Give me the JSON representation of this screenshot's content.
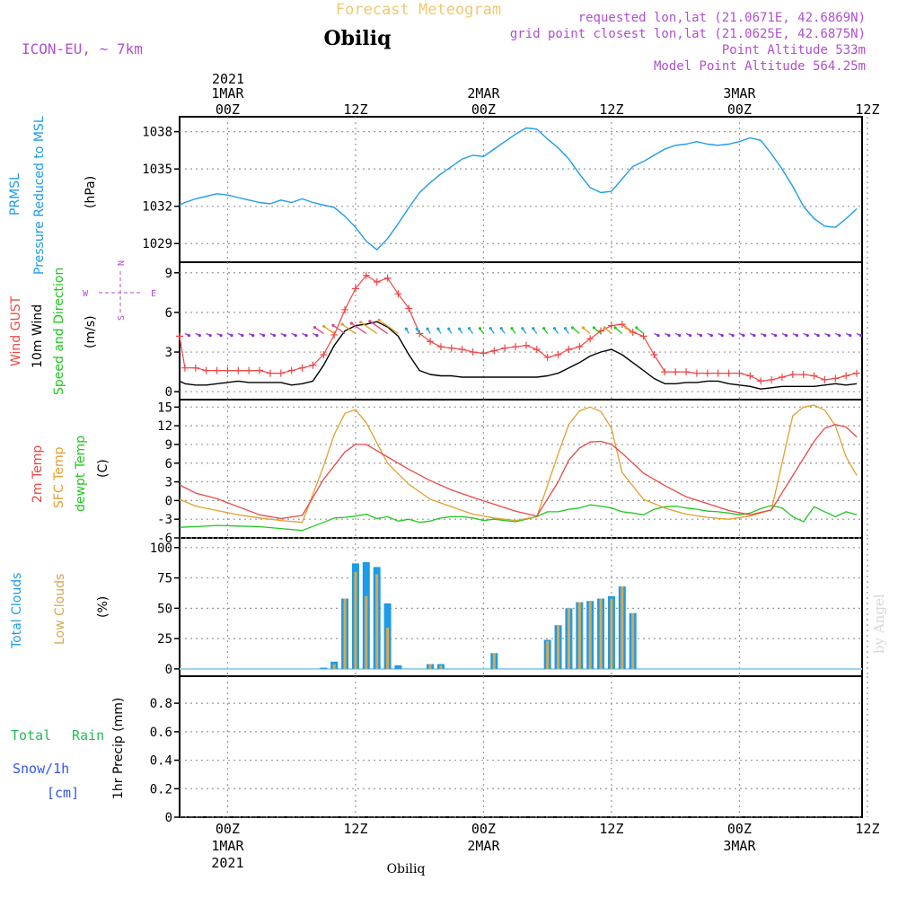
{
  "header": {
    "title": "Forecast Meteogram",
    "place": "Obiliq",
    "model": "ICON-EU, ~ 7km",
    "requested": "requested lon,lat (21.0671E, 42.6869N)",
    "grid": "grid point closest lon,lat (21.0625E, 42.6875N)",
    "altitude": "Point Altitude 533m",
    "model_altitude": "Model Point Altitude 564.25m",
    "footer_place": "Obiliq",
    "credit": "by Angel"
  },
  "time_axis": {
    "year": "2021",
    "top_labels": [
      {
        "h": 0,
        "top": "1MAR",
        "bottom": "00Z"
      },
      {
        "h": 12,
        "top": "",
        "bottom": "12Z"
      },
      {
        "h": 24,
        "top": "2MAR",
        "bottom": "00Z"
      },
      {
        "h": 36,
        "top": "",
        "bottom": "12Z"
      },
      {
        "h": 48,
        "top": "3MAR",
        "bottom": "00Z"
      },
      {
        "h": 60,
        "top": "",
        "bottom": "12Z"
      }
    ],
    "bottom_labels": [
      {
        "h": 0,
        "a": "00Z",
        "b": "1MAR",
        "c": "2021"
      },
      {
        "h": 12,
        "a": "12Z",
        "b": "",
        "c": ""
      },
      {
        "h": 24,
        "a": "00Z",
        "b": "2MAR",
        "c": ""
      },
      {
        "h": 36,
        "a": "12Z",
        "b": "",
        "c": ""
      },
      {
        "h": 48,
        "a": "00Z",
        "b": "3MAR",
        "c": ""
      },
      {
        "h": 60,
        "a": "12Z",
        "b": "",
        "c": ""
      }
    ]
  },
  "panels": {
    "pressure": {
      "l1": "PRMSL",
      "l2": "Pressure Reduced to MSL",
      "unit": "(hPa)"
    },
    "wind": {
      "l1": "Wind GUST",
      "l2": "10m Wind",
      "l3": "Speed and Direction",
      "unit": "(m/s)",
      "compass_n": "N",
      "compass_s": "S",
      "compass_w": "W",
      "compass_e": "E"
    },
    "temp": {
      "l1": "2m Temp",
      "l2": "SFC Temp",
      "l3": "dewpt Temp",
      "unit": "(C)"
    },
    "clouds": {
      "l1": "Total Clouds",
      "l2": "Low Clouds",
      "unit": "(%)"
    },
    "precip": {
      "l1": "Total",
      "l1b": "Rain",
      "l2": "Snow/1h",
      "l3": "[cm]",
      "unit": "1hr Precip (mm)"
    }
  },
  "colors": {
    "pressure": "#1e9be8",
    "gust": "#f04646",
    "wind": "#000000",
    "arrows_purple": "#8a2be2",
    "t2m": "#e84848",
    "tsfc": "#e0a030",
    "dewpt": "#20c820",
    "total_clouds": "#1e9be8",
    "low_clouds": "#d8a850",
    "label_rain": "#22bb55",
    "label_snow": "#3355ee",
    "title": "#f0c870",
    "info": "#b050d0"
  },
  "chart_data": [
    {
      "type": "line",
      "id": "pressure",
      "title": "PRMSL Pressure Reduced to MSL",
      "ylabel": "(hPa)",
      "xlim": [
        -4.5,
        59.5
      ],
      "ylim": [
        1027.5,
        1039.2
      ],
      "yticks": [
        1029,
        1032,
        1035,
        1038
      ],
      "series": [
        {
          "name": "PRMSL",
          "x": [
            -4.5,
            -4,
            -3,
            -2,
            -1,
            0,
            1,
            2,
            3,
            4,
            5,
            6,
            7,
            8,
            9,
            10,
            11,
            12,
            13,
            14,
            15,
            16,
            17,
            18,
            19,
            20,
            21,
            22,
            23,
            24,
            25,
            26,
            27,
            28,
            29,
            30,
            31,
            32,
            33,
            34,
            35,
            36,
            37,
            38,
            39,
            40,
            41,
            42,
            43,
            44,
            45,
            46,
            47,
            48,
            49,
            50,
            51,
            52,
            53,
            54,
            55,
            56,
            57,
            58,
            59
          ],
          "y": [
            1032.1,
            1032.3,
            1032.6,
            1032.8,
            1033.0,
            1032.9,
            1032.7,
            1032.5,
            1032.3,
            1032.2,
            1032.5,
            1032.3,
            1032.6,
            1032.3,
            1032.1,
            1031.9,
            1031.2,
            1030.3,
            1029.2,
            1028.5,
            1029.4,
            1030.6,
            1031.9,
            1033.1,
            1033.9,
            1034.6,
            1035.2,
            1035.8,
            1036.1,
            1036.0,
            1036.6,
            1037.2,
            1037.8,
            1038.3,
            1038.2,
            1037.4,
            1036.7,
            1035.8,
            1034.6,
            1033.5,
            1033.1,
            1033.2,
            1034.2,
            1035.2,
            1035.6,
            1036.1,
            1036.6,
            1036.9,
            1037.0,
            1037.2,
            1037.0,
            1036.9,
            1037.0,
            1037.2,
            1037.5,
            1037.3,
            1036.2,
            1035.0,
            1033.6,
            1032.0,
            1031.0,
            1030.4,
            1030.3,
            1031.0,
            1031.8
          ]
        }
      ]
    },
    {
      "type": "line",
      "id": "wind",
      "title": "Wind GUST / 10m Wind",
      "ylabel": "(m/s)",
      "xlim": [
        -4.5,
        59.5
      ],
      "ylim": [
        -0.6,
        9.8
      ],
      "yticks": [
        0,
        3,
        6,
        9
      ],
      "series": [
        {
          "name": "Wind GUST",
          "x": [
            -4.5,
            -4,
            -3,
            -2,
            -1,
            0,
            1,
            2,
            3,
            4,
            5,
            6,
            7,
            8,
            9,
            10,
            11,
            12,
            13,
            14,
            15,
            16,
            17,
            18,
            19,
            20,
            21,
            22,
            23,
            24,
            25,
            26,
            27,
            28,
            29,
            30,
            31,
            32,
            33,
            34,
            35,
            36,
            37,
            38,
            39,
            40,
            41,
            42,
            43,
            44,
            45,
            46,
            47,
            48,
            49,
            50,
            51,
            52,
            53,
            54,
            55,
            56,
            57,
            58,
            59
          ],
          "y": [
            4.2,
            1.8,
            1.8,
            1.6,
            1.6,
            1.6,
            1.6,
            1.6,
            1.6,
            1.4,
            1.4,
            1.6,
            1.8,
            2.0,
            2.8,
            4.3,
            6.2,
            7.8,
            8.8,
            8.3,
            8.6,
            7.4,
            6.3,
            4.4,
            3.8,
            3.4,
            3.3,
            3.2,
            3.0,
            2.9,
            3.1,
            3.3,
            3.4,
            3.5,
            3.2,
            2.6,
            2.8,
            3.2,
            3.4,
            4.0,
            4.6,
            5.0,
            5.1,
            4.5,
            4.2,
            2.8,
            1.5,
            1.5,
            1.5,
            1.4,
            1.4,
            1.4,
            1.4,
            1.4,
            1.2,
            0.8,
            0.9,
            1.1,
            1.3,
            1.3,
            1.2,
            0.9,
            1.0,
            1.2,
            1.4
          ]
        },
        {
          "name": "10m Wind",
          "x": [
            -4.5,
            -4,
            -3,
            -2,
            -1,
            0,
            1,
            2,
            3,
            4,
            5,
            6,
            7,
            8,
            9,
            10,
            11,
            12,
            13,
            14,
            15,
            16,
            17,
            18,
            19,
            20,
            21,
            22,
            23,
            24,
            25,
            26,
            27,
            28,
            29,
            30,
            31,
            32,
            33,
            34,
            35,
            36,
            37,
            38,
            39,
            40,
            41,
            42,
            43,
            44,
            45,
            46,
            47,
            48,
            49,
            50,
            51,
            52,
            53,
            54,
            55,
            56,
            57,
            58,
            59
          ],
          "y": [
            0.8,
            0.6,
            0.5,
            0.5,
            0.6,
            0.7,
            0.8,
            0.7,
            0.7,
            0.7,
            0.7,
            0.5,
            0.6,
            0.8,
            2.0,
            3.5,
            4.6,
            5.0,
            5.1,
            5.3,
            4.9,
            4.2,
            2.8,
            1.6,
            1.3,
            1.2,
            1.2,
            1.1,
            1.1,
            1.1,
            1.1,
            1.1,
            1.1,
            1.1,
            1.1,
            1.2,
            1.4,
            1.8,
            2.2,
            2.7,
            3.0,
            3.2,
            2.8,
            2.2,
            1.6,
            1.0,
            0.6,
            0.6,
            0.7,
            0.7,
            0.8,
            0.8,
            0.6,
            0.5,
            0.4,
            0.2,
            0.3,
            0.4,
            0.4,
            0.4,
            0.4,
            0.5,
            0.6,
            0.5,
            0.6
          ]
        }
      ]
    },
    {
      "type": "line",
      "id": "temp",
      "title": "2m Temp / SFC Temp / dewpt Temp",
      "ylabel": "(C)",
      "xlim": [
        -4.5,
        59.5
      ],
      "ylim": [
        -6,
        16.2
      ],
      "yticks": [
        -6,
        -3,
        0,
        3,
        6,
        9,
        12,
        15
      ],
      "series": [
        {
          "name": "2m Temp",
          "x": [
            -4.5,
            -3,
            -1,
            1,
            3,
            5,
            7,
            9,
            11,
            12,
            13,
            15,
            17,
            19,
            21,
            23,
            25,
            27,
            29,
            31,
            32,
            33,
            34,
            35,
            36,
            37,
            39,
            41,
            43,
            45,
            47,
            49,
            51,
            53,
            55,
            56,
            57,
            58,
            59
          ],
          "y": [
            2.5,
            1.2,
            0.3,
            -1.0,
            -2.3,
            -2.9,
            -2.4,
            3.4,
            7.8,
            9.0,
            9.0,
            7.0,
            5.0,
            3.2,
            1.7,
            0.5,
            -0.6,
            -1.7,
            -2.5,
            3.0,
            6.5,
            8.4,
            9.4,
            9.5,
            9.0,
            7.6,
            4.4,
            2.4,
            0.6,
            -0.5,
            -1.6,
            -2.3,
            -1.5,
            4.0,
            9.5,
            11.6,
            12.2,
            11.8,
            10.2
          ]
        },
        {
          "name": "SFC Temp",
          "x": [
            -4.5,
            -3,
            -1,
            1,
            3,
            5,
            7,
            9,
            10,
            11,
            12,
            13,
            15,
            17,
            19,
            21,
            23,
            25,
            27,
            29,
            31,
            32,
            33,
            34,
            35,
            36,
            37,
            39,
            41,
            43,
            45,
            47,
            49,
            51,
            53,
            54,
            55,
            56,
            57,
            58,
            59
          ],
          "y": [
            0.2,
            -0.9,
            -1.6,
            -2.3,
            -2.8,
            -3.2,
            -3.5,
            5.5,
            10.6,
            14.0,
            14.6,
            12.5,
            6.0,
            2.6,
            0.2,
            -1.0,
            -2.2,
            -2.8,
            -3.2,
            -2.6,
            7.5,
            12.2,
            14.4,
            15.0,
            14.3,
            11.6,
            4.5,
            0.2,
            -1.2,
            -2.2,
            -2.7,
            -3.0,
            -2.5,
            -1.5,
            13.6,
            15.0,
            15.3,
            14.5,
            12.0,
            7.0,
            4.0
          ]
        },
        {
          "name": "dewpt Temp",
          "x": [
            -4.5,
            -3,
            -1,
            1,
            3,
            5,
            7,
            9,
            10,
            11,
            12,
            13,
            14,
            15,
            16,
            17,
            18,
            19,
            20,
            21,
            22,
            23,
            24,
            25,
            26,
            27,
            28,
            29,
            30,
            31,
            32,
            33,
            34,
            35,
            36,
            37,
            38,
            39,
            40,
            41,
            42,
            43,
            44,
            45,
            46,
            47,
            48,
            49,
            50,
            51,
            52,
            53,
            54,
            55,
            56,
            57,
            58,
            59
          ],
          "y": [
            -4.3,
            -4.2,
            -4.0,
            -4.1,
            -4.2,
            -4.5,
            -4.8,
            -3.5,
            -2.8,
            -2.7,
            -2.5,
            -2.2,
            -2.9,
            -2.6,
            -3.3,
            -3.0,
            -3.5,
            -3.3,
            -2.8,
            -2.6,
            -2.6,
            -2.8,
            -3.2,
            -3.0,
            -3.2,
            -3.4,
            -3.0,
            -2.6,
            -1.8,
            -1.8,
            -1.4,
            -1.2,
            -0.7,
            -0.9,
            -1.2,
            -1.8,
            -2.0,
            -2.3,
            -1.4,
            -1.0,
            -0.9,
            -1.2,
            -1.4,
            -1.7,
            -1.8,
            -2.0,
            -2.3,
            -2.0,
            -1.3,
            -0.8,
            -1.2,
            -2.6,
            -3.4,
            -1.0,
            -1.8,
            -2.6,
            -1.8,
            -2.3
          ]
        }
      ]
    },
    {
      "type": "bar",
      "id": "clouds",
      "title": "Total Clouds / Low Clouds",
      "ylabel": "(%)",
      "xlim": [
        -4.5,
        59.5
      ],
      "ylim": [
        -6,
        108
      ],
      "yticks": [
        0,
        25,
        50,
        75,
        100
      ],
      "series": [
        {
          "name": "Total Clouds",
          "x": [
            9,
            10,
            11,
            12,
            13,
            14,
            15,
            16,
            19,
            20,
            25,
            30,
            31,
            32,
            33,
            34,
            35,
            36,
            37,
            38
          ],
          "y": [
            1,
            6,
            58,
            87,
            88,
            84,
            54,
            3,
            4,
            4,
            13,
            24,
            36,
            50,
            55,
            56,
            58,
            60,
            68,
            46
          ]
        },
        {
          "name": "Low Clouds",
          "x": [
            9,
            10,
            11,
            12,
            13,
            14,
            15,
            16,
            19,
            20,
            25,
            30,
            31,
            32,
            33,
            34,
            35,
            36,
            37,
            38
          ],
          "y": [
            0,
            4,
            58,
            80,
            60,
            78,
            34,
            0,
            4,
            3,
            13,
            23,
            36,
            50,
            55,
            56,
            58,
            58,
            68,
            46
          ]
        }
      ]
    },
    {
      "type": "bar",
      "id": "precip",
      "title": "Total Rain / Snow 1h",
      "ylabel": "1hr Precip (mm)",
      "xlim": [
        -4.5,
        59.5
      ],
      "ylim": [
        0,
        0.99
      ],
      "yticks": [
        0,
        0.2,
        0.4,
        0.6,
        0.8
      ],
      "series": [
        {
          "name": "Total Rain",
          "x": [],
          "y": []
        }
      ]
    }
  ]
}
